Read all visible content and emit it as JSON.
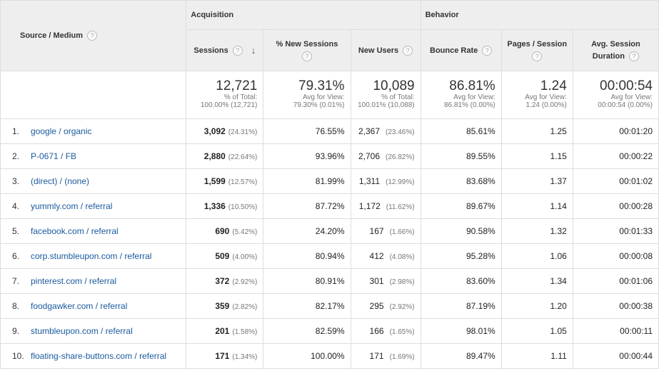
{
  "headers": {
    "source_medium": "Source / Medium",
    "acquisition": "Acquisition",
    "behavior": "Behavior",
    "sessions": "Sessions",
    "new_sessions": "% New Sessions",
    "new_users": "New Users",
    "bounce_rate": "Bounce Rate",
    "pages_session": "Pages / Session",
    "avg_duration_1": "Avg. Session",
    "avg_duration_2": "Duration",
    "help_glyph": "?",
    "sort_glyph": "↓"
  },
  "summary": {
    "sessions": {
      "value": "12,721",
      "line1": "% of Total:",
      "line2": "100.00% (12,721)"
    },
    "new_sessions": {
      "value": "79.31%",
      "line1": "Avg for View:",
      "line2": "79.30% (0.01%)"
    },
    "new_users": {
      "value": "10,089",
      "line1": "% of Total:",
      "line2": "100.01% (10,088)"
    },
    "bounce_rate": {
      "value": "86.81%",
      "line1": "Avg for View:",
      "line2": "86.81% (0.00%)"
    },
    "pages_session": {
      "value": "1.24",
      "line1": "Avg for View:",
      "line2": "1.24 (0.00%)"
    },
    "avg_duration": {
      "value": "00:00:54",
      "line1": "Avg for View:",
      "line2": "00:00:54 (0.00%)"
    }
  },
  "rows": [
    {
      "num": "1.",
      "source": "google / organic",
      "sessions": "3,092",
      "sessions_pct": "(24.31%)",
      "new_sessions": "76.55%",
      "new_users": "2,367",
      "new_users_pct": "(23.46%)",
      "bounce": "85.61%",
      "pages": "1.25",
      "duration": "00:01:20"
    },
    {
      "num": "2.",
      "source": "P-0671 / FB",
      "sessions": "2,880",
      "sessions_pct": "(22.64%)",
      "new_sessions": "93.96%",
      "new_users": "2,706",
      "new_users_pct": "(26.82%)",
      "bounce": "89.55%",
      "pages": "1.15",
      "duration": "00:00:22"
    },
    {
      "num": "3.",
      "source": "(direct) / (none)",
      "sessions": "1,599",
      "sessions_pct": "(12.57%)",
      "new_sessions": "81.99%",
      "new_users": "1,311",
      "new_users_pct": "(12.99%)",
      "bounce": "83.68%",
      "pages": "1.37",
      "duration": "00:01:02"
    },
    {
      "num": "4.",
      "source": "yummly.com / referral",
      "sessions": "1,336",
      "sessions_pct": "(10.50%)",
      "new_sessions": "87.72%",
      "new_users": "1,172",
      "new_users_pct": "(11.62%)",
      "bounce": "89.67%",
      "pages": "1.14",
      "duration": "00:00:28"
    },
    {
      "num": "5.",
      "source": "facebook.com / referral",
      "sessions": "690",
      "sessions_pct": "(5.42%)",
      "new_sessions": "24.20%",
      "new_users": "167",
      "new_users_pct": "(1.66%)",
      "bounce": "90.58%",
      "pages": "1.32",
      "duration": "00:01:33"
    },
    {
      "num": "6.",
      "source": "corp.stumbleupon.com / referral",
      "sessions": "509",
      "sessions_pct": "(4.00%)",
      "new_sessions": "80.94%",
      "new_users": "412",
      "new_users_pct": "(4.08%)",
      "bounce": "95.28%",
      "pages": "1.06",
      "duration": "00:00:08"
    },
    {
      "num": "7.",
      "source": "pinterest.com / referral",
      "sessions": "372",
      "sessions_pct": "(2.92%)",
      "new_sessions": "80.91%",
      "new_users": "301",
      "new_users_pct": "(2.98%)",
      "bounce": "83.60%",
      "pages": "1.34",
      "duration": "00:01:06"
    },
    {
      "num": "8.",
      "source": "foodgawker.com / referral",
      "sessions": "359",
      "sessions_pct": "(2.82%)",
      "new_sessions": "82.17%",
      "new_users": "295",
      "new_users_pct": "(2.92%)",
      "bounce": "87.19%",
      "pages": "1.20",
      "duration": "00:00:38"
    },
    {
      "num": "9.",
      "source": "stumbleupon.com / referral",
      "sessions": "201",
      "sessions_pct": "(1.58%)",
      "new_sessions": "82.59%",
      "new_users": "166",
      "new_users_pct": "(1.65%)",
      "bounce": "98.01%",
      "pages": "1.05",
      "duration": "00:00:11"
    },
    {
      "num": "10.",
      "source": "floating-share-buttons.com / referral",
      "sessions": "171",
      "sessions_pct": "(1.34%)",
      "new_sessions": "100.00%",
      "new_users": "171",
      "new_users_pct": "(1.69%)",
      "bounce": "89.47%",
      "pages": "1.11",
      "duration": "00:00:44"
    }
  ]
}
